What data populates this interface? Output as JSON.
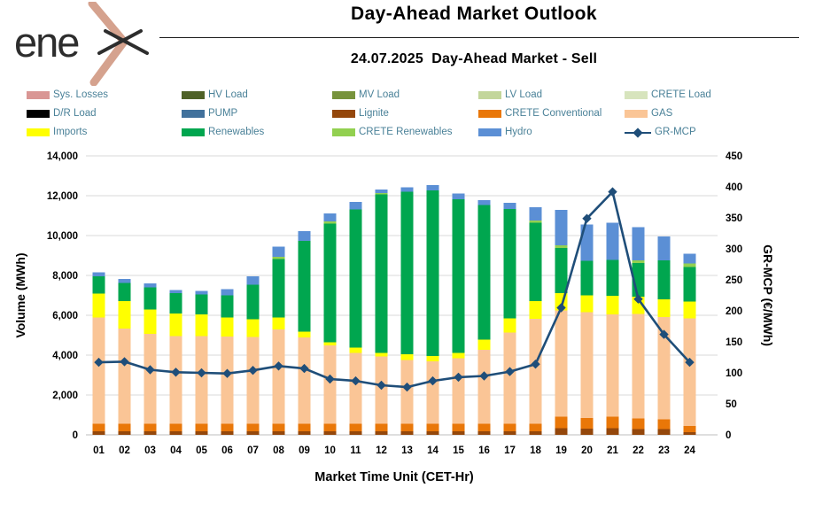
{
  "header": {
    "logo_text": "ene",
    "brand": "enex",
    "title": "Day-Ahead Market Outlook",
    "subtitle": "24.07.2025  Day-Ahead Market - Sell"
  },
  "colors": {
    "logo_dark": "#2d2d2d",
    "logo_accent": "#d5a28e",
    "legend_text": "#4a8198",
    "gridline": "#d9d9d9",
    "axis_line": "#bfbfbf",
    "axis_text": "#000000"
  },
  "legend": {
    "items": [
      {
        "label": "Sys. Losses",
        "color": "#d99694",
        "marker": "swatch"
      },
      {
        "label": "HV Load",
        "color": "#4f6228",
        "marker": "swatch"
      },
      {
        "label": "MV Load",
        "color": "#77933c",
        "marker": "swatch"
      },
      {
        "label": "LV Load",
        "color": "#c3d69b",
        "marker": "swatch"
      },
      {
        "label": "CRETE Load",
        "color": "#d7e4bd",
        "marker": "swatch"
      },
      {
        "label": "D/R Load",
        "color": "#000000",
        "marker": "swatch"
      },
      {
        "label": "PUMP",
        "color": "#41719c",
        "marker": "swatch"
      },
      {
        "label": "Lignite",
        "color": "#94470b",
        "marker": "swatch"
      },
      {
        "label": "CRETE Conventional",
        "color": "#e97708",
        "marker": "swatch"
      },
      {
        "label": "GAS",
        "color": "#fac596",
        "marker": "swatch"
      },
      {
        "label": "Imports",
        "color": "#ffff00",
        "marker": "swatch"
      },
      {
        "label": "Renewables",
        "color": "#00a64f",
        "marker": "swatch"
      },
      {
        "label": "CRETE Renewables",
        "color": "#92d050",
        "marker": "swatch"
      },
      {
        "label": "Hydro",
        "color": "#5b8fd5",
        "marker": "swatch"
      },
      {
        "label": "GR-MCP",
        "color": "#1f4e79",
        "marker": "line"
      }
    ]
  },
  "chart_data": {
    "type": "bar",
    "subtype": "stacked-bar-with-line",
    "title": "Day-Ahead Market Outlook",
    "subtitle": "24.07.2025  Day-Ahead Market - Sell",
    "xlabel": "Market Time Unit (CET-Hr)",
    "categories": [
      "01",
      "02",
      "03",
      "04",
      "05",
      "06",
      "07",
      "08",
      "09",
      "10",
      "11",
      "12",
      "13",
      "14",
      "15",
      "16",
      "17",
      "18",
      "19",
      "20",
      "21",
      "22",
      "23",
      "24"
    ],
    "left_axis": {
      "label": "Volume (MWh)",
      "min": 0,
      "max": 14000,
      "step": 2000
    },
    "right_axis": {
      "label": "GR-MCP (€/MWh)",
      "min": 0,
      "max": 450,
      "step": 50
    },
    "grid": true,
    "legend_position": "top",
    "series": [
      {
        "name": "Lignite",
        "color": "#94470b",
        "values": [
          180,
          180,
          180,
          180,
          180,
          180,
          180,
          180,
          180,
          180,
          180,
          180,
          180,
          180,
          180,
          180,
          180,
          180,
          340,
          310,
          340,
          280,
          280,
          140
        ]
      },
      {
        "name": "CRETE Conventional",
        "color": "#e97708",
        "values": [
          375,
          375,
          375,
          375,
          375,
          375,
          375,
          375,
          375,
          375,
          375,
          375,
          375,
          375,
          375,
          375,
          375,
          375,
          565,
          535,
          565,
          535,
          490,
          300
        ]
      },
      {
        "name": "GAS",
        "color": "#fac596",
        "values": [
          5340,
          4775,
          4520,
          4405,
          4400,
          4375,
          4360,
          4745,
          4330,
          3930,
          3560,
          3380,
          3190,
          3145,
          3290,
          3705,
          4585,
          5265,
          5340,
          5300,
          5150,
          5250,
          5150,
          5415
        ]
      },
      {
        "name": "Imports",
        "color": "#ffff00",
        "values": [
          1190,
          1380,
          1220,
          1125,
          1100,
          965,
          890,
          590,
          300,
          150,
          255,
          180,
          295,
          265,
          265,
          520,
          710,
          890,
          860,
          845,
          915,
          860,
          890,
          845
        ]
      },
      {
        "name": "Renewables",
        "color": "#00a64f",
        "values": [
          865,
          920,
          1110,
          1025,
          1000,
          1110,
          1735,
          2935,
          4540,
          5975,
          6940,
          7950,
          8160,
          8305,
          7710,
          6750,
          5490,
          3935,
          2280,
          1750,
          1800,
          1700,
          1950,
          1720
        ]
      },
      {
        "name": "CRETE Renewables",
        "color": "#92d050",
        "values": [
          0,
          0,
          0,
          0,
          0,
          0,
          0,
          100,
          0,
          100,
          0,
          60,
          0,
          0,
          0,
          0,
          0,
          115,
          120,
          0,
          0,
          120,
          0,
          180
        ]
      },
      {
        "name": "Hydro",
        "color": "#5b8fd5",
        "values": [
          200,
          200,
          200,
          160,
          170,
          300,
          415,
          520,
          490,
          400,
          370,
          180,
          220,
          255,
          295,
          255,
          295,
          655,
          1780,
          1825,
          1870,
          1675,
          1190,
          490
        ]
      }
    ],
    "line_series": {
      "name": "GR-MCP",
      "color": "#1f4e79",
      "axis": "right",
      "values": [
        117,
        118,
        105,
        101,
        100,
        99,
        104,
        111,
        107,
        90,
        87,
        80,
        77,
        87,
        93,
        95,
        102,
        114,
        205,
        349,
        392,
        219,
        162,
        117
      ]
    }
  }
}
